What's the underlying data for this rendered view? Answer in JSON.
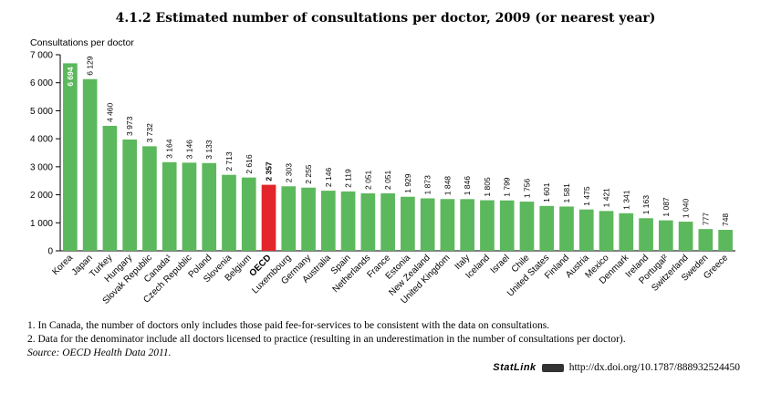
{
  "chart_data": {
    "type": "bar",
    "title": "4.1.2  Estimated number of consultations per doctor, 2009 (or nearest year)",
    "ylabel": "Consultations per doctor",
    "ylim": [
      0,
      7000
    ],
    "yticks": [
      0,
      1000,
      2000,
      3000,
      4000,
      5000,
      6000,
      7000
    ],
    "ytick_labels": [
      "0",
      "1 000",
      "2 000",
      "3 000",
      "4 000",
      "5 000",
      "6 000",
      "7 000"
    ],
    "grid": false,
    "categories": [
      "Korea",
      "Japan",
      "Turkey",
      "Hungary",
      "Slovak Republic",
      "Canada¹",
      "Czech Republic",
      "Poland",
      "Slovenia",
      "Belgium",
      "OECD",
      "Luxembourg",
      "Germany",
      "Australia",
      "Spain",
      "Netherlands",
      "France",
      "Estonia",
      "New Zealand",
      "United Kingdom",
      "Italy",
      "Iceland",
      "Israel",
      "Chile",
      "United States",
      "Finland",
      "Austria",
      "Mexico",
      "Denmark",
      "Ireland",
      "Portugal²",
      "Switzerland",
      "Sweden",
      "Greece"
    ],
    "values": [
      6694,
      6129,
      4460,
      3973,
      3732,
      3164,
      3146,
      3133,
      2713,
      2616,
      2357,
      2303,
      2255,
      2146,
      2119,
      2051,
      2051,
      1929,
      1873,
      1848,
      1846,
      1805,
      1799,
      1756,
      1601,
      1581,
      1475,
      1421,
      1341,
      1163,
      1087,
      1040,
      777,
      748
    ],
    "value_labels": [
      "6 694",
      "6 129",
      "4 460",
      "3 973",
      "3 732",
      "3 164",
      "3 146",
      "3 133",
      "2 713",
      "2 616",
      "2 357",
      "2 303",
      "2 255",
      "2 146",
      "2 119",
      "2 051",
      "2 051",
      "1 929",
      "1 873",
      "1 848",
      "1 846",
      "1 805",
      "1 799",
      "1 756",
      "1 601",
      "1 581",
      "1 475",
      "1 421",
      "1 341",
      "1 163",
      "1 087",
      "1 040",
      "777",
      "748"
    ],
    "bar_color": "#5cb85c",
    "highlight_category": "OECD",
    "highlight_color": "#e3262b"
  },
  "notes": [
    "1.  In Canada, the number of doctors only includes those paid fee-for-services to be consistent with the data on consultations.",
    "2.  Data for the denominator include all doctors licensed to practice (resulting in an underestimation in the number of consultations per doctor)."
  ],
  "source": "Source:  OECD Health Data 2011.",
  "statlink": {
    "brand": "StatLink",
    "url": "http://dx.doi.org/10.1787/888932524450"
  }
}
